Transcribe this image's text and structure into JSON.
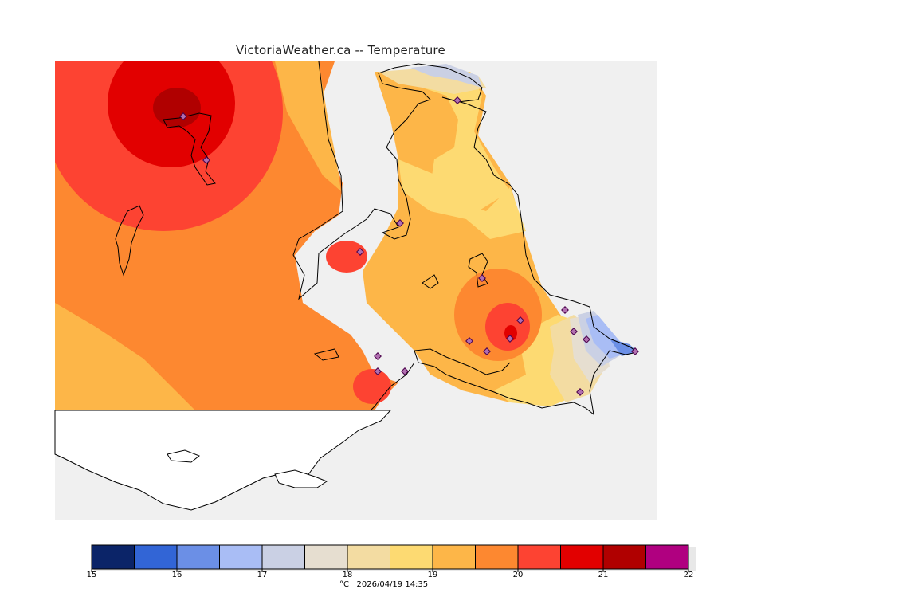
{
  "header": {
    "title": "VictoriaWeather.ca -- Temperature"
  },
  "legend": {
    "unit": "°C",
    "timestamp": "2026/04/19 14:35",
    "caption": "°C   2026/04/19 14:35",
    "labels": [
      "15",
      "16",
      "17",
      "18",
      "19",
      "20",
      "21",
      "22"
    ],
    "bins": [
      {
        "from": 15.0,
        "to": 15.5,
        "color": "#0b2468"
      },
      {
        "from": 15.5,
        "to": 16.0,
        "color": "#3265d6"
      },
      {
        "from": 16.0,
        "to": 16.5,
        "color": "#6b8fe6"
      },
      {
        "from": 16.5,
        "to": 17.0,
        "color": "#a9bdf5"
      },
      {
        "from": 17.0,
        "to": 17.5,
        "color": "#cad0e4"
      },
      {
        "from": 17.5,
        "to": 18.0,
        "color": "#e6ded0"
      },
      {
        "from": 18.0,
        "to": 18.5,
        "color": "#f3dca2"
      },
      {
        "from": 18.5,
        "to": 19.0,
        "color": "#fdda72"
      },
      {
        "from": 19.0,
        "to": 19.5,
        "color": "#fdb648"
      },
      {
        "from": 19.5,
        "to": 20.0,
        "color": "#fd8830"
      },
      {
        "from": 20.0,
        "to": 20.5,
        "color": "#fd4332"
      },
      {
        "from": 20.5,
        "to": 21.0,
        "color": "#e20000"
      },
      {
        "from": 21.0,
        "to": 21.5,
        "color": "#b00000"
      },
      {
        "from": 21.5,
        "to": 22.0,
        "color": "#b00080"
      }
    ]
  },
  "colors": {
    "sea": "#f0f0f0",
    "unmapped_land": "#ffffff",
    "coastline": "#000000",
    "station_marker": "#b06fb0"
  }
}
